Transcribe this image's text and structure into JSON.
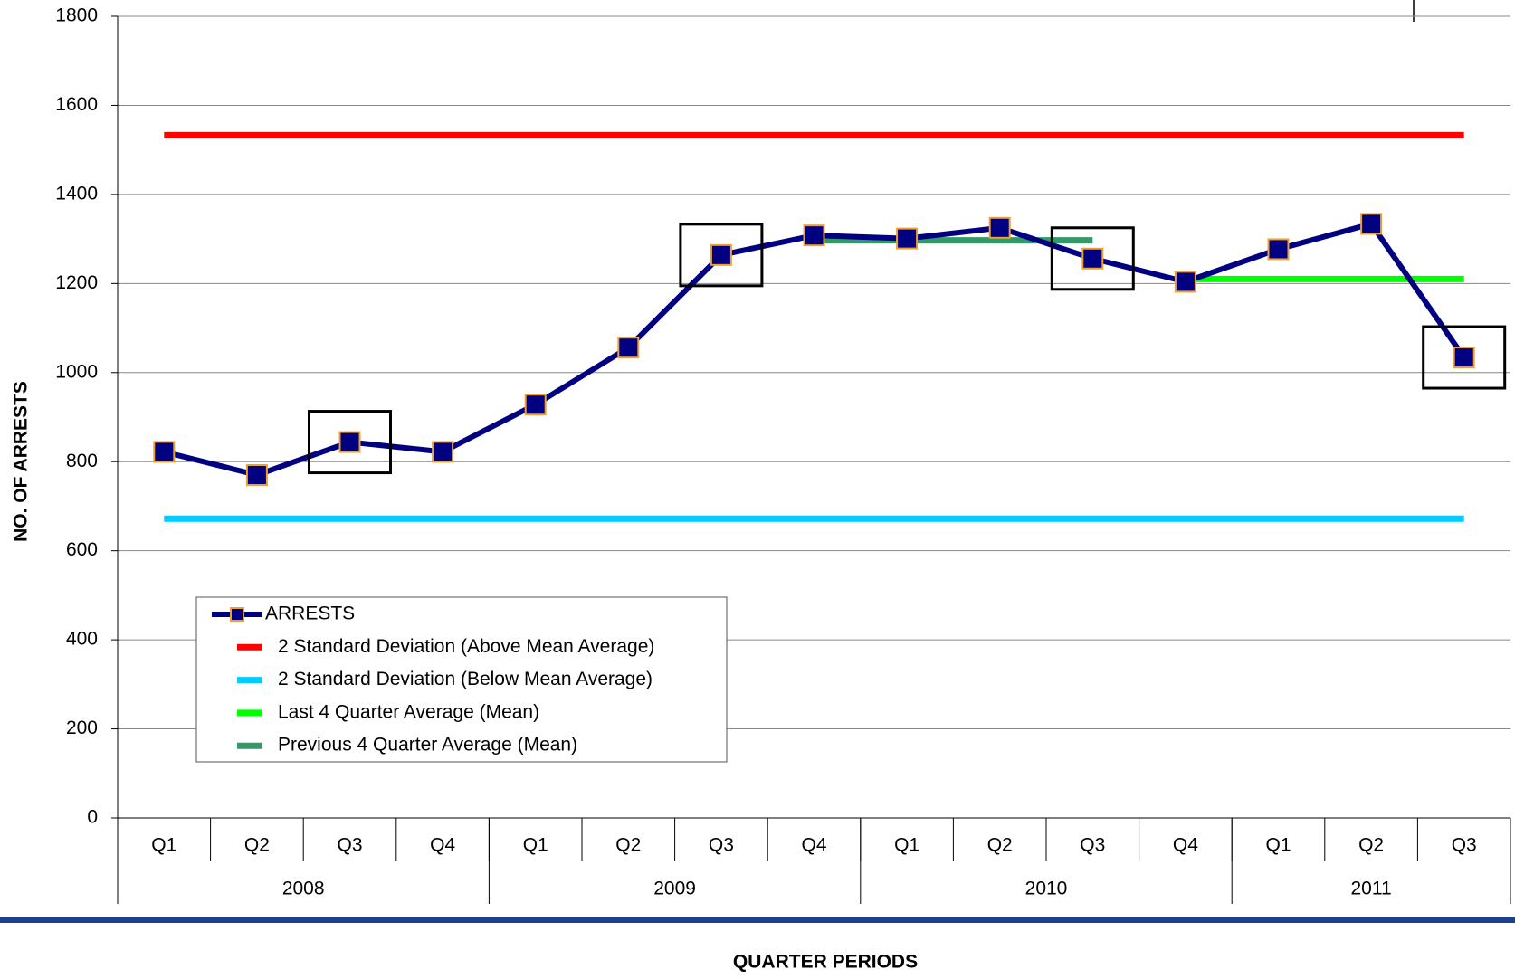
{
  "chart_data": {
    "type": "line",
    "y_label": "NO. OF ARRESTS",
    "x_label": "QUARTER PERIODS",
    "categories": [
      "Q1",
      "Q2",
      "Q3",
      "Q4",
      "Q1",
      "Q2",
      "Q3",
      "Q4",
      "Q1",
      "Q2",
      "Q3",
      "Q4",
      "Q1",
      "Q2",
      "Q3"
    ],
    "year_groups": [
      {
        "name": "2008",
        "count": 4
      },
      {
        "name": "2009",
        "count": 4
      },
      {
        "name": "2010",
        "count": 4
      },
      {
        "name": "2011",
        "count": 3
      }
    ],
    "series": [
      {
        "name": "ARRESTS",
        "color": "#000080",
        "marker": true,
        "values": [
          822,
          770,
          844,
          822,
          928,
          1056,
          1264,
          1308,
          1301,
          1325,
          1256,
          1204,
          1277,
          1334,
          1034
        ]
      },
      {
        "name": "2 Standard Deviation (Above Mean Average)",
        "color": "#ff0000",
        "values": [
          1533,
          1533,
          1533,
          1533,
          1533,
          1533,
          1533,
          1533,
          1533,
          1533,
          1533,
          1533,
          1533,
          1533,
          1533
        ]
      },
      {
        "name": "2 Standard Deviation (Below Mean Average)",
        "color": "#00ccff",
        "values": [
          672,
          672,
          672,
          672,
          672,
          672,
          672,
          672,
          672,
          672,
          672,
          672,
          672,
          672,
          672
        ]
      },
      {
        "name": "Last 4 Quarter Average (Mean)",
        "color": "#00ff00",
        "values": [
          null,
          null,
          null,
          null,
          null,
          null,
          null,
          null,
          null,
          null,
          null,
          1210,
          1210,
          1210,
          1210
        ]
      },
      {
        "name": "Previous 4 Quarter Average (Mean)",
        "color": "#339966",
        "values": [
          null,
          null,
          null,
          null,
          null,
          null,
          null,
          1297,
          1297,
          1297,
          1297,
          null,
          null,
          null,
          null
        ]
      }
    ],
    "ylim": [
      0,
      1800
    ],
    "yticks": [
      0,
      200,
      400,
      600,
      800,
      1000,
      1200,
      1400,
      1600,
      1800
    ],
    "grid": true
  }
}
